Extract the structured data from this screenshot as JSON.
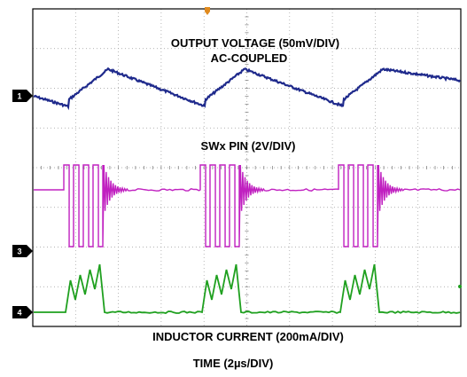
{
  "chart_data": {
    "type": "line",
    "title": "",
    "xlabel": "TIME (2µs/DIV)",
    "ylabel": "",
    "grid": true,
    "grid_divisions": {
      "x": 10,
      "y": 8
    },
    "trigger_marker": "trigger-arrow",
    "annotations": [
      {
        "key": "vout",
        "text": "OUTPUT VOLTAGE (50mV/DIV)"
      },
      {
        "key": "acc",
        "text": "AC-COUPLED"
      },
      {
        "key": "sw",
        "text": "SWx PIN (2V/DIV)"
      },
      {
        "key": "il",
        "text": "INDUCTOR CURRENT (200mA/DIV)"
      }
    ],
    "channels": [
      {
        "id": "1",
        "color": "#1f2a8c",
        "scale": "50mV/DIV",
        "coupling": "AC"
      },
      {
        "id": "3",
        "color": "#c020c0",
        "scale": "2V/DIV"
      },
      {
        "id": "4",
        "color": "#1fa01f",
        "scale": "200mA/DIV"
      }
    ],
    "burst_period_div": 3.1,
    "pulses_per_burst": 4
  }
}
